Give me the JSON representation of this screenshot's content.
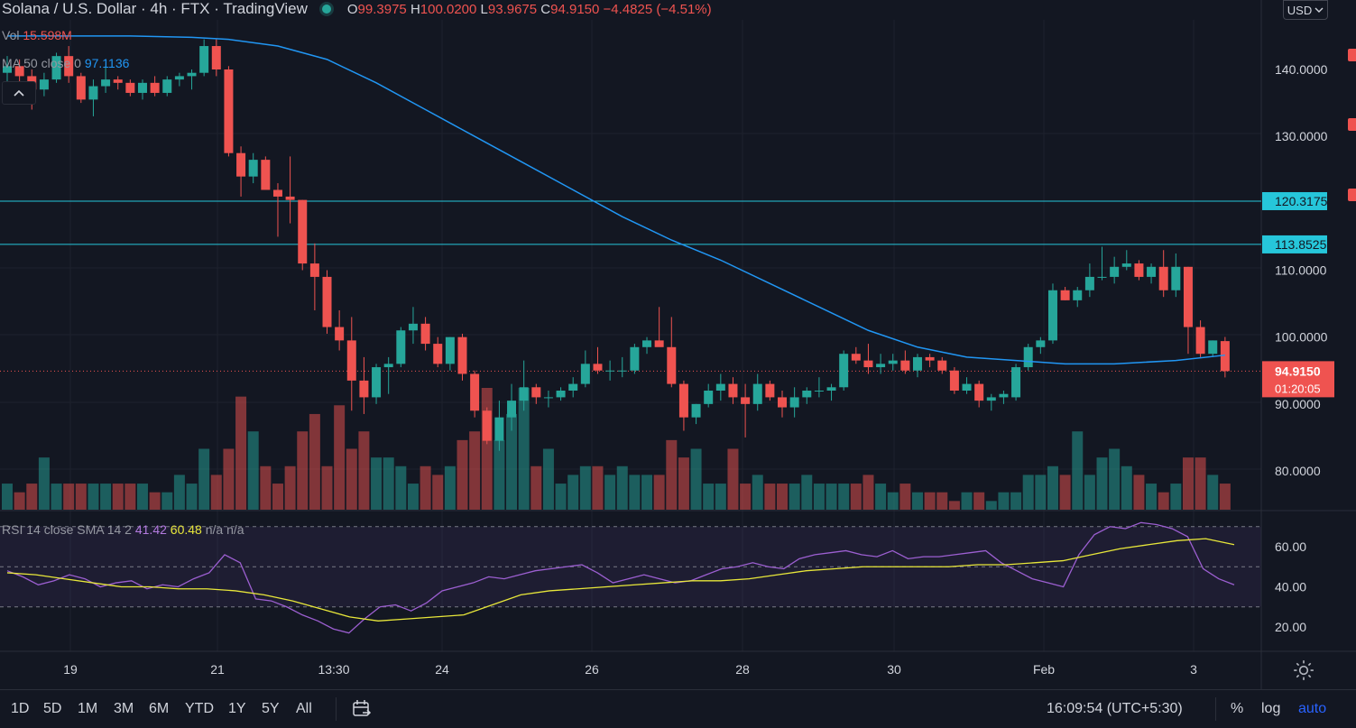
{
  "header": {
    "title": "Solana / U.S. Dollar · 4h · FTX · TradingView",
    "open_label": "O",
    "open": "99.3975",
    "high_label": "H",
    "high": "100.0200",
    "low_label": "L",
    "low": "93.9675",
    "close_label": "C",
    "close": "94.9150",
    "change": "−4.4825 (−4.51%)"
  },
  "indicators": {
    "vol_label": "Vol",
    "vol_value": "15.598M",
    "ma_label": "MA 50 close 0",
    "ma_value": "97.1136",
    "rsi_label": "RSI 14 close SMA 14 2",
    "rsi_value": "41.42",
    "rsi_sma_value": "60.48",
    "rsi_na1": "n/a",
    "rsi_na2": "n/a"
  },
  "currency": "USD",
  "price_axis": {
    "ticks": [
      "140.0000",
      "130.0000",
      "110.0000",
      "100.0000",
      "90.0000",
      "80.0000"
    ],
    "levels": [
      "120.3175",
      "113.8525"
    ],
    "last_price": "94.9150",
    "countdown": "01:20:05"
  },
  "rsi_axis": {
    "ticks": [
      "60.00",
      "40.00",
      "20.00"
    ]
  },
  "time_axis": {
    "labels": [
      "19",
      "21",
      "13:30",
      "24",
      "26",
      "28",
      "30",
      "Feb",
      "3"
    ]
  },
  "toolbar": {
    "timeframes": [
      "1D",
      "5D",
      "1M",
      "3M",
      "6M",
      "YTD",
      "1Y",
      "5Y",
      "All"
    ],
    "clock": "16:09:54 (UTC+5:30)",
    "percent": "%",
    "log": "log",
    "auto": "auto"
  },
  "colors": {
    "up": "#26a69a",
    "down": "#ef5350",
    "ma": "#2196f3",
    "level": "#26c6da",
    "rsi": "#9c5fd1",
    "rsi_sma": "#e8e73a",
    "background": "#131722"
  },
  "chart_data": {
    "type": "candlestick",
    "title": "Solana / U.S. Dollar",
    "interval": "4h",
    "exchange": "FTX",
    "horizontal_levels": [
      120.3175,
      113.8525
    ],
    "candles": [
      {
        "o": 139.5,
        "h": 142.0,
        "l": 136.0,
        "c": 140.5
      },
      {
        "o": 140.5,
        "h": 141.5,
        "l": 137.0,
        "c": 139.0
      },
      {
        "o": 139.0,
        "h": 140.0,
        "l": 134.0,
        "c": 137.0
      },
      {
        "o": 137.0,
        "h": 139.5,
        "l": 136.0,
        "c": 138.5
      },
      {
        "o": 138.5,
        "h": 142.5,
        "l": 138.0,
        "c": 142.0
      },
      {
        "o": 142.0,
        "h": 143.5,
        "l": 138.0,
        "c": 139.0
      },
      {
        "o": 139.0,
        "h": 139.5,
        "l": 135.0,
        "c": 135.5
      },
      {
        "o": 135.5,
        "h": 138.5,
        "l": 133.0,
        "c": 137.5
      },
      {
        "o": 137.5,
        "h": 140.5,
        "l": 136.5,
        "c": 138.5
      },
      {
        "o": 138.5,
        "h": 139.0,
        "l": 137.0,
        "c": 138.0
      },
      {
        "o": 138.0,
        "h": 138.5,
        "l": 136.0,
        "c": 136.5
      },
      {
        "o": 136.5,
        "h": 138.5,
        "l": 135.5,
        "c": 138.0
      },
      {
        "o": 138.0,
        "h": 139.0,
        "l": 136.0,
        "c": 136.5
      },
      {
        "o": 136.5,
        "h": 139.0,
        "l": 136.0,
        "c": 138.5
      },
      {
        "o": 138.5,
        "h": 139.5,
        "l": 137.5,
        "c": 139.0
      },
      {
        "o": 139.0,
        "h": 140.0,
        "l": 137.0,
        "c": 139.5
      },
      {
        "o": 139.5,
        "h": 144.5,
        "l": 139.0,
        "c": 143.5
      },
      {
        "o": 143.5,
        "h": 144.5,
        "l": 139.0,
        "c": 140.0
      },
      {
        "o": 140.0,
        "h": 140.5,
        "l": 127.0,
        "c": 127.5
      },
      {
        "o": 127.5,
        "h": 128.5,
        "l": 121.0,
        "c": 124.0
      },
      {
        "o": 124.0,
        "h": 127.5,
        "l": 123.0,
        "c": 126.5
      },
      {
        "o": 126.5,
        "h": 127.0,
        "l": 122.0,
        "c": 122.0
      },
      {
        "o": 122.0,
        "h": 123.0,
        "l": 115.0,
        "c": 121.0
      },
      {
        "o": 121.0,
        "h": 127.0,
        "l": 117.0,
        "c": 120.5
      },
      {
        "o": 120.5,
        "h": 120.5,
        "l": 110.0,
        "c": 111.0
      },
      {
        "o": 111.0,
        "h": 114.0,
        "l": 104.0,
        "c": 109.0
      },
      {
        "o": 109.0,
        "h": 110.0,
        "l": 100.5,
        "c": 101.5
      },
      {
        "o": 101.5,
        "h": 104.0,
        "l": 98.0,
        "c": 99.5
      },
      {
        "o": 99.5,
        "h": 103.0,
        "l": 89.0,
        "c": 93.5
      },
      {
        "o": 93.5,
        "h": 97.0,
        "l": 88.5,
        "c": 91.0
      },
      {
        "o": 91.0,
        "h": 96.0,
        "l": 90.0,
        "c": 95.5
      },
      {
        "o": 95.5,
        "h": 97.0,
        "l": 91.5,
        "c": 96.0
      },
      {
        "o": 96.0,
        "h": 101.5,
        "l": 95.5,
        "c": 101.0
      },
      {
        "o": 101.0,
        "h": 104.5,
        "l": 99.0,
        "c": 102.0
      },
      {
        "o": 102.0,
        "h": 103.0,
        "l": 98.0,
        "c": 99.0
      },
      {
        "o": 99.0,
        "h": 100.0,
        "l": 95.5,
        "c": 96.0
      },
      {
        "o": 96.0,
        "h": 100.0,
        "l": 95.0,
        "c": 100.0
      },
      {
        "o": 100.0,
        "h": 100.5,
        "l": 93.5,
        "c": 94.5
      },
      {
        "o": 94.5,
        "h": 95.0,
        "l": 88.0,
        "c": 89.0
      },
      {
        "o": 89.0,
        "h": 89.5,
        "l": 84.0,
        "c": 84.5
      },
      {
        "o": 84.5,
        "h": 90.5,
        "l": 83.0,
        "c": 88.0
      },
      {
        "o": 88.0,
        "h": 93.0,
        "l": 86.0,
        "c": 90.5
      },
      {
        "o": 90.5,
        "h": 96.5,
        "l": 89.0,
        "c": 92.5
      },
      {
        "o": 92.5,
        "h": 93.0,
        "l": 90.0,
        "c": 91.0
      },
      {
        "o": 91.0,
        "h": 92.0,
        "l": 89.5,
        "c": 91.0
      },
      {
        "o": 91.0,
        "h": 92.5,
        "l": 90.5,
        "c": 92.0
      },
      {
        "o": 92.0,
        "h": 94.0,
        "l": 91.0,
        "c": 93.0
      },
      {
        "o": 93.0,
        "h": 98.0,
        "l": 92.5,
        "c": 96.0
      },
      {
        "o": 96.0,
        "h": 98.5,
        "l": 94.5,
        "c": 95.0
      },
      {
        "o": 95.0,
        "h": 96.5,
        "l": 93.5,
        "c": 95.0
      },
      {
        "o": 95.0,
        "h": 97.0,
        "l": 94.0,
        "c": 95.0
      },
      {
        "o": 95.0,
        "h": 99.0,
        "l": 94.5,
        "c": 98.5
      },
      {
        "o": 98.5,
        "h": 100.0,
        "l": 97.5,
        "c": 99.5
      },
      {
        "o": 99.5,
        "h": 104.5,
        "l": 99.0,
        "c": 98.5
      },
      {
        "o": 98.5,
        "h": 103.0,
        "l": 92.5,
        "c": 93.0
      },
      {
        "o": 93.0,
        "h": 93.5,
        "l": 86.0,
        "c": 88.0
      },
      {
        "o": 88.0,
        "h": 90.0,
        "l": 87.0,
        "c": 90.0
      },
      {
        "o": 90.0,
        "h": 93.0,
        "l": 89.5,
        "c": 92.0
      },
      {
        "o": 92.0,
        "h": 94.5,
        "l": 90.5,
        "c": 93.0
      },
      {
        "o": 93.0,
        "h": 94.0,
        "l": 90.0,
        "c": 91.0
      },
      {
        "o": 91.0,
        "h": 93.0,
        "l": 85.0,
        "c": 90.0
      },
      {
        "o": 90.0,
        "h": 94.5,
        "l": 89.0,
        "c": 93.0
      },
      {
        "o": 93.0,
        "h": 93.5,
        "l": 90.5,
        "c": 91.0
      },
      {
        "o": 91.0,
        "h": 92.0,
        "l": 88.0,
        "c": 89.5
      },
      {
        "o": 89.5,
        "h": 92.5,
        "l": 88.0,
        "c": 91.0
      },
      {
        "o": 91.0,
        "h": 92.5,
        "l": 90.0,
        "c": 92.0
      },
      {
        "o": 92.0,
        "h": 94.0,
        "l": 91.0,
        "c": 92.0
      },
      {
        "o": 92.0,
        "h": 93.0,
        "l": 90.5,
        "c": 92.5
      },
      {
        "o": 92.5,
        "h": 98.0,
        "l": 92.0,
        "c": 97.5
      },
      {
        "o": 97.5,
        "h": 98.5,
        "l": 96.0,
        "c": 96.5
      },
      {
        "o": 96.5,
        "h": 99.0,
        "l": 94.5,
        "c": 95.5
      },
      {
        "o": 95.5,
        "h": 97.5,
        "l": 94.5,
        "c": 96.0
      },
      {
        "o": 96.0,
        "h": 97.5,
        "l": 95.0,
        "c": 96.5
      },
      {
        "o": 96.5,
        "h": 98.0,
        "l": 94.5,
        "c": 95.0
      },
      {
        "o": 95.0,
        "h": 97.5,
        "l": 94.0,
        "c": 97.0
      },
      {
        "o": 97.0,
        "h": 97.5,
        "l": 95.5,
        "c": 96.5
      },
      {
        "o": 96.5,
        "h": 97.0,
        "l": 94.5,
        "c": 95.0
      },
      {
        "o": 95.0,
        "h": 95.5,
        "l": 91.5,
        "c": 92.0
      },
      {
        "o": 92.0,
        "h": 94.0,
        "l": 91.5,
        "c": 93.0
      },
      {
        "o": 93.0,
        "h": 93.5,
        "l": 89.5,
        "c": 90.5
      },
      {
        "o": 90.5,
        "h": 91.5,
        "l": 89.0,
        "c": 91.0
      },
      {
        "o": 91.0,
        "h": 92.0,
        "l": 90.0,
        "c": 91.5
      },
      {
        "o": 91.0,
        "h": 96.0,
        "l": 90.5,
        "c": 95.5
      },
      {
        "o": 95.5,
        "h": 99.0,
        "l": 95.0,
        "c": 98.5
      },
      {
        "o": 98.5,
        "h": 100.0,
        "l": 97.5,
        "c": 99.5
      },
      {
        "o": 99.5,
        "h": 108.0,
        "l": 99.0,
        "c": 107.0
      },
      {
        "o": 107.0,
        "h": 107.5,
        "l": 105.5,
        "c": 105.5
      },
      {
        "o": 105.5,
        "h": 107.5,
        "l": 104.5,
        "c": 107.0
      },
      {
        "o": 107.0,
        "h": 111.0,
        "l": 106.0,
        "c": 109.0
      },
      {
        "o": 109.0,
        "h": 113.5,
        "l": 108.5,
        "c": 109.0
      },
      {
        "o": 109.0,
        "h": 112.0,
        "l": 108.0,
        "c": 110.5
      },
      {
        "o": 110.5,
        "h": 113.0,
        "l": 110.0,
        "c": 111.0
      },
      {
        "o": 111.0,
        "h": 111.5,
        "l": 108.5,
        "c": 109.0
      },
      {
        "o": 109.0,
        "h": 111.0,
        "l": 108.0,
        "c": 110.5
      },
      {
        "o": 110.5,
        "h": 113.0,
        "l": 106.0,
        "c": 107.0
      },
      {
        "o": 107.0,
        "h": 112.5,
        "l": 106.0,
        "c": 110.5
      },
      {
        "o": 110.5,
        "h": 110.5,
        "l": 97.5,
        "c": 101.5
      },
      {
        "o": 101.5,
        "h": 102.5,
        "l": 97.0,
        "c": 97.5
      },
      {
        "o": 97.5,
        "h": 99.5,
        "l": 97.0,
        "c": 99.5
      },
      {
        "o": 99.4,
        "h": 100.02,
        "l": 93.97,
        "c": 94.915
      }
    ],
    "volume": [
      3,
      2,
      3,
      6,
      3,
      3,
      3,
      3,
      3,
      3,
      3,
      3,
      2,
      2,
      4,
      3,
      7,
      4,
      7,
      13,
      9,
      5,
      3,
      5,
      9,
      11,
      5,
      12,
      7,
      9,
      6,
      6,
      5,
      3,
      5,
      4,
      5,
      8,
      9,
      14,
      8,
      11,
      14,
      5,
      7,
      3,
      4,
      5,
      5,
      4,
      5,
      4,
      4,
      4,
      8,
      6,
      7,
      3,
      3,
      7,
      3,
      4,
      3,
      3,
      3,
      4,
      3,
      3,
      3,
      3,
      4,
      3,
      2,
      3,
      2,
      2,
      2,
      1,
      2,
      2,
      1,
      2,
      2,
      4,
      4,
      5,
      4,
      9,
      4,
      6,
      7,
      5,
      4,
      3,
      2,
      3,
      6,
      6,
      4,
      3
    ],
    "ma50": [
      145,
      145,
      145,
      144.8,
      144.5,
      143.5,
      141.5,
      138,
      134,
      130,
      126,
      122,
      118,
      114.5,
      111.5,
      108,
      104.5,
      101,
      98.5,
      97,
      96.5,
      96,
      96,
      96.5,
      97.3
    ],
    "ma50_x": [
      0,
      5,
      10,
      15,
      18,
      22,
      26,
      30,
      34,
      38,
      42,
      46,
      50,
      54,
      58,
      62,
      66,
      70,
      74,
      78,
      82,
      86,
      90,
      95,
      99
    ],
    "ma50_note": "x indices refer to candle positions",
    "rsi": [
      48,
      45,
      41,
      43,
      46,
      44,
      40,
      42,
      43,
      39,
      41,
      40,
      44,
      47,
      56,
      52,
      34,
      33,
      30,
      26,
      23,
      19,
      17,
      24,
      30,
      31,
      28,
      32,
      38,
      40,
      42,
      45,
      44,
      46,
      48,
      49,
      50,
      51,
      47,
      42,
      44,
      46,
      44,
      42,
      43,
      46,
      49,
      50,
      52,
      50,
      49,
      54,
      56,
      57,
      58,
      56,
      55,
      58,
      54,
      55,
      55,
      56,
      57,
      58,
      52,
      48,
      44,
      42,
      40,
      56,
      66,
      70,
      69,
      72,
      71,
      69,
      65,
      49,
      44,
      41
    ],
    "rsi_sma": [
      47,
      46,
      44,
      42,
      40,
      40,
      39,
      39,
      38,
      36,
      33,
      29,
      25,
      23,
      24,
      25,
      26,
      31,
      36,
      38,
      39,
      40,
      41,
      42,
      43,
      43,
      44,
      46,
      48,
      49,
      50,
      50,
      50,
      50,
      51,
      51,
      52,
      53,
      56,
      59,
      61,
      63,
      64,
      61
    ],
    "rsi_bands": [
      70,
      50,
      30
    ],
    "x_labels": [
      "19",
      "21",
      "13:30",
      "24",
      "26",
      "28",
      "30",
      "Feb",
      "3"
    ],
    "ylim": [
      75,
      146
    ],
    "rsi_ylim": [
      10,
      75
    ]
  }
}
